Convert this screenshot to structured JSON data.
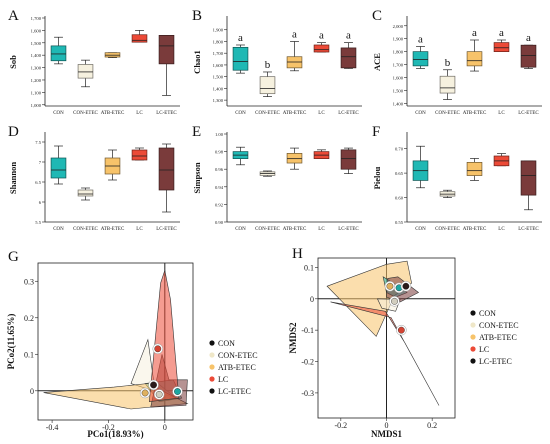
{
  "colors": {
    "CON": "#1fb8b4",
    "CON-ETEC": "#f6f1df",
    "ATB-ETEC": "#f7c36a",
    "LC": "#ec4a37",
    "LC-ETEC": "#7a3b3b"
  },
  "chart_data": [
    {
      "type": "box",
      "panel": "A",
      "ylabel": "Sob",
      "yticks": [
        1000,
        1100,
        1200,
        1300,
        1400,
        1500,
        1600,
        1700
      ],
      "ytick_labels": [
        "1,000",
        "1,100",
        "1,200",
        "1,300",
        "1,400",
        "1,500",
        "1,600",
        "1,700"
      ],
      "ylim": [
        990,
        1700
      ],
      "categories": [
        "CON",
        "CON-ETEC",
        "ATB-ETEC",
        "LC",
        "LC-ETEC"
      ],
      "boxes": [
        {
          "min": 1330,
          "q1": 1355,
          "median": 1410,
          "q3": 1475,
          "max": 1545
        },
        {
          "min": 1145,
          "q1": 1215,
          "median": 1265,
          "q3": 1325,
          "max": 1360
        },
        {
          "min": 1380,
          "q1": 1385,
          "median": 1400,
          "q3": 1420,
          "max": 1420
        },
        {
          "min": 1505,
          "q1": 1505,
          "median": 1520,
          "q3": 1565,
          "max": 1600
        },
        {
          "min": 1075,
          "q1": 1330,
          "median": 1475,
          "q3": 1560,
          "max": 1560
        }
      ],
      "letters": []
    },
    {
      "type": "box",
      "panel": "B",
      "ylabel": "Chao1",
      "yticks": [
        1300,
        1400,
        1500,
        1600,
        1700,
        1800,
        1900
      ],
      "ytick_labels": [
        "1,300",
        "1,400",
        "1,500",
        "1,600",
        "1,700",
        "1,800",
        "1,900"
      ],
      "ylim": [
        1250,
        2000
      ],
      "categories": [
        "CON",
        "CON-ETEC",
        "ATB-ETEC",
        "LC",
        "LC-ETEC"
      ],
      "boxes": [
        {
          "min": 1530,
          "q1": 1555,
          "median": 1630,
          "q3": 1750,
          "max": 1770
        },
        {
          "min": 1330,
          "q1": 1355,
          "median": 1400,
          "q3": 1500,
          "max": 1540
        },
        {
          "min": 1550,
          "q1": 1575,
          "median": 1625,
          "q3": 1670,
          "max": 1800
        },
        {
          "min": 1710,
          "q1": 1710,
          "median": 1730,
          "q3": 1770,
          "max": 1790
        },
        {
          "min": 1570,
          "q1": 1575,
          "median": 1670,
          "q3": 1745,
          "max": 1790
        }
      ],
      "letters": [
        "a",
        "b",
        "a",
        "a",
        "a"
      ]
    },
    {
      "type": "box",
      "panel": "C",
      "ylabel": "ACE",
      "yticks": [
        1400,
        1500,
        1600,
        1700,
        1800,
        1900,
        2000
      ],
      "ytick_labels": [
        "1,400",
        "1,500",
        "1,600",
        "1,700",
        "1,800",
        "1,900",
        "2,000"
      ],
      "ylim": [
        1380,
        2060
      ],
      "categories": [
        "CON",
        "CON-ETEC",
        "ATB-ETEC",
        "LC",
        "LC-ETEC"
      ],
      "boxes": [
        {
          "min": 1670,
          "q1": 1690,
          "median": 1740,
          "q3": 1800,
          "max": 1840
        },
        {
          "min": 1430,
          "q1": 1480,
          "median": 1520,
          "q3": 1610,
          "max": 1660
        },
        {
          "min": 1650,
          "q1": 1690,
          "median": 1730,
          "q3": 1800,
          "max": 1890
        },
        {
          "min": 1800,
          "q1": 1800,
          "median": 1830,
          "q3": 1870,
          "max": 1890
        },
        {
          "min": 1670,
          "q1": 1680,
          "median": 1770,
          "q3": 1850,
          "max": 1850
        }
      ],
      "letters": [
        "a",
        "b",
        "a",
        "a",
        "a"
      ]
    },
    {
      "type": "box",
      "panel": "D",
      "ylabel": "Shannon",
      "yticks": [
        5.5,
        6,
        6.5,
        7,
        7.5
      ],
      "ytick_labels": [
        "5.5",
        "6",
        "6.5",
        "7",
        "7.5"
      ],
      "ylim": [
        5.5,
        7.7
      ],
      "categories": [
        "CON",
        "CON-ETEC",
        "ATB-ETEC",
        "LC",
        "LC-ETEC"
      ],
      "boxes": [
        {
          "min": 6.45,
          "q1": 6.6,
          "median": 6.8,
          "q3": 7.1,
          "max": 7.4
        },
        {
          "min": 6.05,
          "q1": 6.15,
          "median": 6.2,
          "q3": 6.3,
          "max": 6.35
        },
        {
          "min": 6.55,
          "q1": 6.7,
          "median": 6.9,
          "q3": 7.1,
          "max": 7.3
        },
        {
          "min": 7.05,
          "q1": 7.05,
          "median": 7.15,
          "q3": 7.3,
          "max": 7.35
        },
        {
          "min": 5.75,
          "q1": 6.3,
          "median": 6.8,
          "q3": 7.35,
          "max": 7.45
        }
      ],
      "letters": []
    },
    {
      "type": "box",
      "panel": "E",
      "ylabel": "Simpson",
      "yticks": [
        0.9,
        0.92,
        0.94,
        0.96,
        0.98,
        1
      ],
      "ytick_labels": [
        "0.90",
        "0.92",
        "0.94",
        "0.96",
        "0.98",
        "1.00"
      ],
      "ylim": [
        0.9,
        1.0
      ],
      "categories": [
        "CON",
        "CON-ETEC",
        "ATB-ETEC",
        "LC",
        "LC-ETEC"
      ],
      "boxes": [
        {
          "min": 0.965,
          "q1": 0.972,
          "median": 0.976,
          "q3": 0.98,
          "max": 0.985
        },
        {
          "min": 0.952,
          "q1": 0.953,
          "median": 0.955,
          "q3": 0.957,
          "max": 0.958
        },
        {
          "min": 0.96,
          "q1": 0.967,
          "median": 0.972,
          "q3": 0.978,
          "max": 0.984
        },
        {
          "min": 0.972,
          "q1": 0.972,
          "median": 0.976,
          "q3": 0.98,
          "max": 0.982
        },
        {
          "min": 0.955,
          "q1": 0.96,
          "median": 0.972,
          "q3": 0.982,
          "max": 0.984
        }
      ],
      "letters": []
    },
    {
      "type": "box",
      "panel": "F",
      "ylabel": "Pielou",
      "yticks": [
        0.55,
        0.6,
        0.65,
        0.7
      ],
      "ytick_labels": [
        "0.55",
        "0.60",
        "0.65",
        "0.70"
      ],
      "ylim": [
        0.55,
        0.73
      ],
      "categories": [
        "CON",
        "CON-ETEC",
        "ATB-ETEC",
        "LC",
        "LC-ETEC"
      ],
      "boxes": [
        {
          "min": 0.62,
          "q1": 0.635,
          "median": 0.655,
          "q3": 0.675,
          "max": 0.705
        },
        {
          "min": 0.6,
          "q1": 0.603,
          "median": 0.607,
          "q3": 0.612,
          "max": 0.615
        },
        {
          "min": 0.635,
          "q1": 0.645,
          "median": 0.655,
          "q3": 0.672,
          "max": 0.68
        },
        {
          "min": 0.665,
          "q1": 0.665,
          "median": 0.675,
          "q3": 0.685,
          "max": 0.69
        },
        {
          "min": 0.575,
          "q1": 0.605,
          "median": 0.645,
          "q3": 0.675,
          "max": 0.675
        }
      ],
      "letters": []
    },
    {
      "type": "scatter",
      "panel": "G",
      "subtype": "pcoa-hull",
      "xlabel": "PCo1(18.93%)",
      "ylabel": "PCo2(11.65%)",
      "xlim": [
        -0.45,
        0.1
      ],
      "ylim": [
        -0.08,
        0.35
      ],
      "xticks": [
        -0.4,
        -0.2,
        0
      ],
      "yticks": [
        0,
        0.1,
        0.2,
        0.3
      ],
      "hull_order": [
        "CON-ETEC",
        "CON",
        "ATB-ETEC",
        "LC-ETEC",
        "LC"
      ],
      "series": [
        {
          "name": "CON",
          "centroid": [
            0.045,
            -0.002
          ],
          "hull": [
            [
              -0.07,
              0.02
            ],
            [
              0.03,
              0.03
            ],
            [
              0.06,
              -0.02
            ],
            [
              -0.02,
              -0.03
            ]
          ]
        },
        {
          "name": "CON-ETEC",
          "centroid": [
            -0.02,
            -0.01
          ],
          "hull": [
            [
              -0.12,
              0.02
            ],
            [
              -0.06,
              0.14
            ],
            [
              -0.04,
              0.03
            ],
            [
              0.04,
              -0.02
            ]
          ]
        },
        {
          "name": "ATB-ETEC",
          "centroid": [
            -0.07,
            -0.006
          ],
          "hull": [
            [
              -0.43,
              -0.005
            ],
            [
              -0.18,
              0.01
            ],
            [
              -0.06,
              0.02
            ],
            [
              0.08,
              -0.035
            ],
            [
              -0.12,
              -0.05
            ]
          ]
        },
        {
          "name": "LC",
          "centroid": [
            -0.025,
            0.115
          ],
          "hull": [
            [
              0.0,
              0.33
            ],
            [
              -0.015,
              0.295
            ],
            [
              -0.055,
              -0.03
            ],
            [
              0.05,
              -0.02
            ],
            [
              0.02,
              0.25
            ]
          ]
        },
        {
          "name": "LC-ETEC",
          "centroid": [
            -0.04,
            0.016
          ],
          "hull": [
            [
              -0.01,
              0.1
            ],
            [
              0.015,
              0.03
            ],
            [
              0.08,
              0.03
            ],
            [
              0.075,
              -0.04
            ],
            [
              -0.05,
              -0.045
            ]
          ]
        }
      ]
    },
    {
      "type": "scatter",
      "panel": "H",
      "subtype": "nmds-hull",
      "xlabel": "NMDS1",
      "ylabel": "NMDS2",
      "xlim": [
        -0.3,
        0.3
      ],
      "ylim": [
        -0.38,
        0.13
      ],
      "xticks": [
        -0.2,
        0,
        0.2
      ],
      "yticks": [
        -0.3,
        -0.2,
        -0.1,
        0,
        0.1
      ],
      "hull_order": [
        "ATB-ETEC",
        "CON",
        "CON-ETEC",
        "LC",
        "LC-ETEC"
      ],
      "series": [
        {
          "name": "CON",
          "centroid": [
            0.055,
            0.035
          ],
          "hull": [
            [
              -0.015,
              0.07
            ],
            [
              0.03,
              0.05
            ],
            [
              0.09,
              0.02
            ],
            [
              0.04,
              0.005
            ],
            [
              0.0,
              0.02
            ]
          ]
        },
        {
          "name": "CON-ETEC",
          "centroid": [
            0.035,
            -0.008
          ],
          "hull": [
            [
              -0.04,
              0.0
            ],
            [
              0.06,
              -0.002
            ],
            [
              0.04,
              -0.04
            ],
            [
              -0.02,
              -0.03
            ]
          ]
        },
        {
          "name": "ATB-ETEC",
          "centroid": [
            0.015,
            0.04
          ],
          "hull": [
            [
              -0.26,
              0.04
            ],
            [
              0.0,
              0.11
            ],
            [
              0.09,
              0.12
            ],
            [
              0.11,
              0.05
            ],
            [
              0.035,
              0.01
            ],
            [
              -0.045,
              -0.12
            ]
          ]
        },
        {
          "name": "LC",
          "centroid": [
            0.065,
            -0.1
          ],
          "hull": [
            [
              -0.245,
              -0.01
            ],
            [
              -0.005,
              -0.04
            ],
            [
              0.08,
              -0.14
            ],
            [
              0.23,
              -0.34
            ],
            [
              0.02,
              -0.06
            ]
          ]
        },
        {
          "name": "LC-ETEC",
          "centroid": [
            0.085,
            0.04
          ],
          "hull": [
            [
              0.005,
              0.065
            ],
            [
              0.05,
              0.07
            ],
            [
              0.14,
              0.02
            ],
            [
              0.06,
              -0.01
            ],
            [
              0.0,
              0.005
            ]
          ]
        }
      ]
    }
  ]
}
